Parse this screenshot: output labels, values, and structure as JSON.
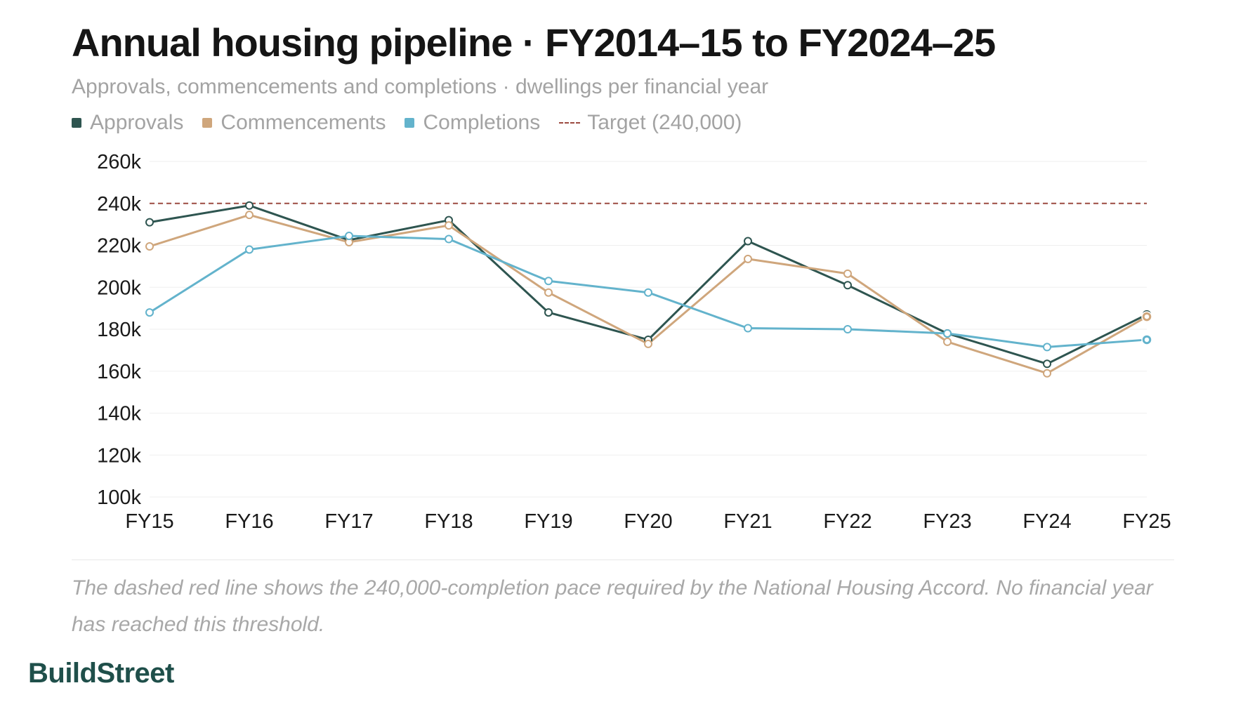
{
  "header": {
    "title": "Annual housing pipeline · FY2014–15 to FY2024–25",
    "subtitle": "Approvals, commencements and completions · dwellings per financial year"
  },
  "legend": [
    {
      "label": "Approvals",
      "color": "#2e5550"
    },
    {
      "label": "Commencements",
      "color": "#cfa67c"
    },
    {
      "label": "Completions",
      "color": "#63b3cc"
    },
    {
      "label": "Target (240,000)",
      "color": "#9c4a40",
      "style": "dashed"
    }
  ],
  "footnote": "The dashed red line shows the 240,000-completion pace required by the National Housing Accord. No financial year has reached this threshold.",
  "brand": "BuildStreet",
  "chart_data": {
    "type": "line",
    "title": "Annual housing pipeline · FY2014–15 to FY2024–25",
    "subtitle": "Approvals, commencements and completions · dwellings per financial year",
    "categories": [
      "FY15",
      "FY16",
      "FY17",
      "FY18",
      "FY19",
      "FY20",
      "FY21",
      "FY22",
      "FY23",
      "FY24",
      "FY25"
    ],
    "y_ticks": [
      100000,
      120000,
      140000,
      160000,
      180000,
      200000,
      220000,
      240000,
      260000
    ],
    "y_tick_labels": [
      "100k",
      "120k",
      "140k",
      "160k",
      "180k",
      "200k",
      "220k",
      "240k",
      "260k"
    ],
    "ylim": [
      100000,
      260000
    ],
    "grid": true,
    "legend_position": "top-left",
    "series": [
      {
        "name": "Approvals",
        "color": "#2e5550",
        "values": [
          231000,
          239000,
          222500,
          232000,
          188000,
          175000,
          222000,
          201000,
          178000,
          163500,
          187000
        ]
      },
      {
        "name": "Commencements",
        "color": "#cfa67c",
        "values": [
          219500,
          234500,
          221500,
          229500,
          197500,
          173000,
          213500,
          206500,
          174000,
          159000,
          186000
        ]
      },
      {
        "name": "Completions",
        "color": "#63b3cc",
        "values": [
          188000,
          218000,
          224500,
          223000,
          203000,
          197500,
          180500,
          180000,
          178000,
          171500,
          175000
        ]
      }
    ],
    "reference_lines": [
      {
        "name": "Target (240,000)",
        "value": 240000,
        "color": "#9c4a40",
        "style": "dashed"
      }
    ]
  }
}
